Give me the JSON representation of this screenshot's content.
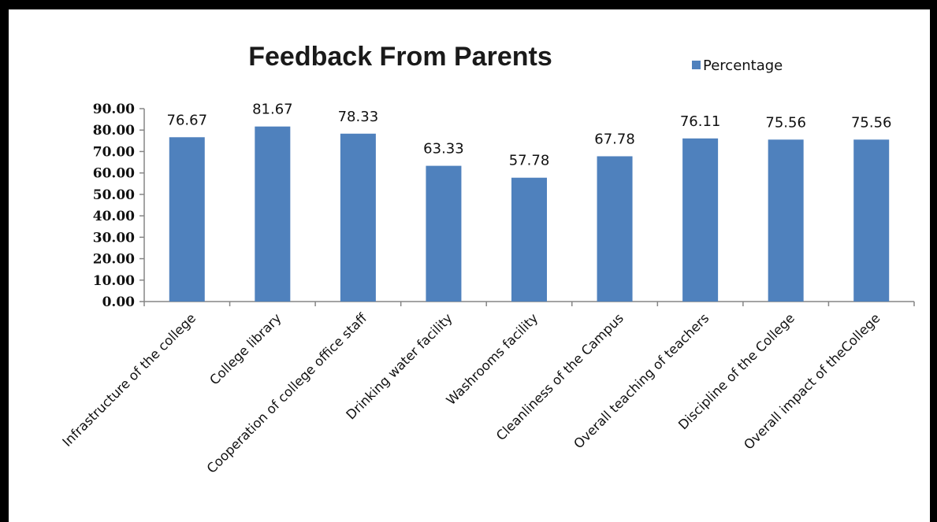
{
  "chart_data": {
    "type": "bar",
    "title": "Feedback From Parents",
    "legend": {
      "position": "top-right"
    },
    "categories": [
      "Infrastructure of the college",
      "College library",
      "Cooperation of college office staff",
      "Drinking water facility",
      "Washrooms facility",
      "Cleanliness of the Campus",
      "Overall teaching of teachers",
      "Discipline of the College",
      "Overall impact of theCollege"
    ],
    "series": [
      {
        "name": "Percentage",
        "values": [
          76.67,
          81.67,
          78.33,
          63.33,
          57.78,
          67.78,
          76.11,
          75.56,
          75.56
        ],
        "color": "#4f81bd"
      }
    ],
    "data_labels": [
      "76.67",
      "81.67",
      "78.33",
      "63.33",
      "57.78",
      "67.78",
      "76.11",
      "75.56",
      "75.56"
    ],
    "y_ticks": [
      "0.00",
      "10.00",
      "20.00",
      "30.00",
      "40.00",
      "50.00",
      "60.00",
      "70.00",
      "80.00",
      "90.00"
    ],
    "ylim": [
      0,
      90
    ],
    "grid": false
  }
}
